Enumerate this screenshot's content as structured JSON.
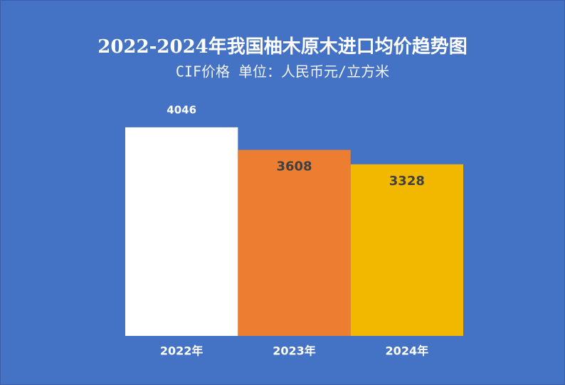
{
  "chart_data": {
    "type": "bar",
    "title": "2022-2024年我国柚木原木进口均价趋势图",
    "subtitle": "CIF价格 单位：人民币元/立方米",
    "categories": [
      "2022年",
      "2023年",
      "2024年"
    ],
    "values": [
      4046,
      3608,
      3328
    ],
    "colors": [
      "#ffffff",
      "#ed7d31",
      "#f2b800"
    ],
    "ylim": [
      0,
      4500
    ]
  }
}
